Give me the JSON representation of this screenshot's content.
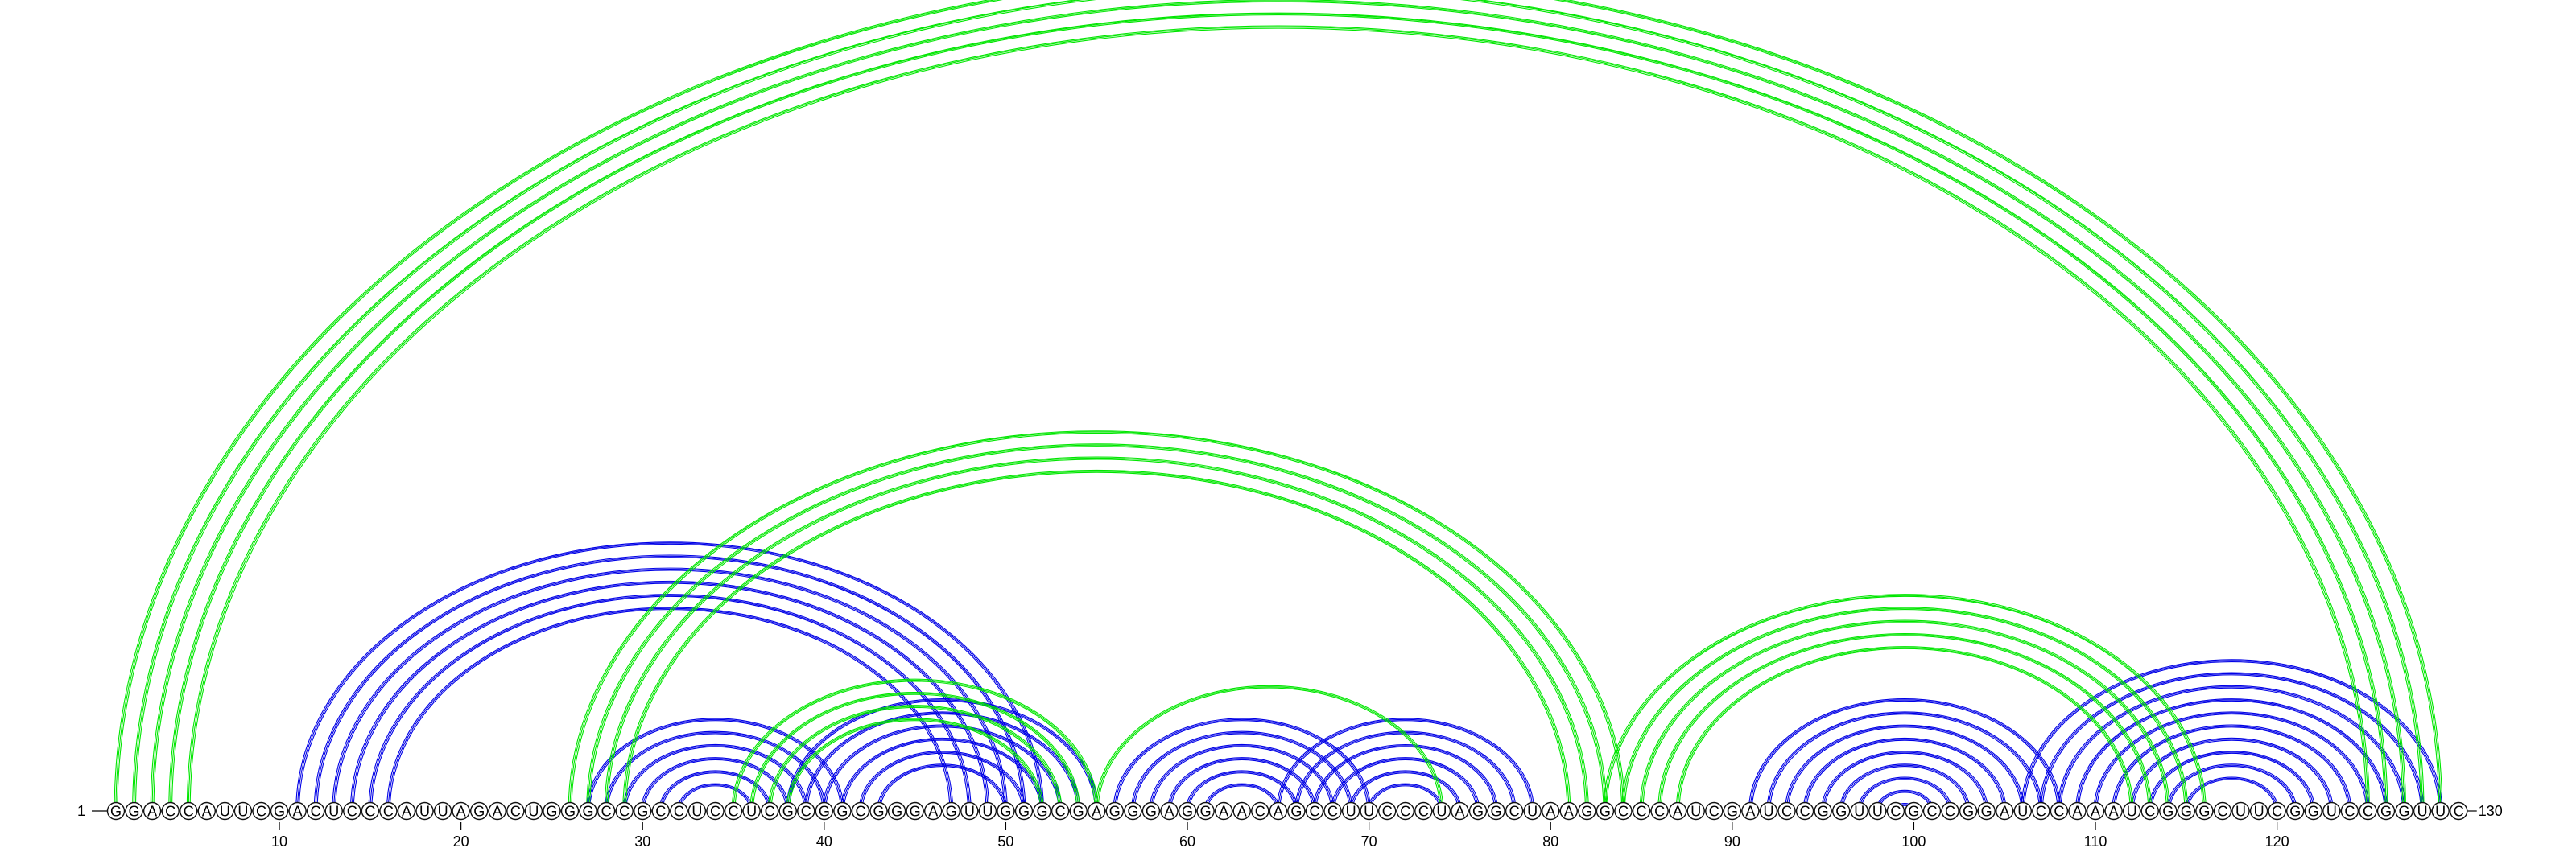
{
  "sequence": "GGACCAUUCGACUCCCAUUAGACUGGGCCGCCUCCUCGCGGCGGGAGUUGGGCGAGGGAGGAACAGCCUUCCCUAGGCUAAGGCCCAUCGAUCCGGUUCGCCGGAUCCAAAUCGGGCUUCGGUCCGGUUC",
  "start_label": "1",
  "end_label": "130",
  "tick_labels": [
    "10",
    "20",
    "30",
    "40",
    "50",
    "60",
    "70",
    "80",
    "90",
    "100",
    "110",
    "120"
  ],
  "colors": {
    "structure_a": "#0000e6",
    "structure_b": "#00e600",
    "backbone": "#000000"
  },
  "arc_sets": [
    {
      "color": "#0000e6",
      "pairs": [
        [
          11,
          52
        ],
        [
          12,
          51
        ],
        [
          13,
          50
        ],
        [
          14,
          49
        ],
        [
          15,
          48
        ],
        [
          16,
          47
        ],
        [
          27,
          41
        ],
        [
          28,
          40
        ],
        [
          29,
          39
        ],
        [
          30,
          38
        ],
        [
          31,
          37
        ],
        [
          32,
          36
        ],
        [
          38,
          55
        ],
        [
          39,
          54
        ],
        [
          40,
          53
        ],
        [
          41,
          52
        ],
        [
          42,
          51
        ],
        [
          43,
          50
        ],
        [
          56,
          70
        ],
        [
          57,
          69
        ],
        [
          58,
          68
        ],
        [
          59,
          67
        ],
        [
          60,
          66
        ],
        [
          61,
          65
        ],
        [
          65,
          79
        ],
        [
          66,
          78
        ],
        [
          67,
          77
        ],
        [
          68,
          76
        ],
        [
          69,
          75
        ],
        [
          70,
          74
        ],
        [
          91,
          108
        ],
        [
          92,
          107
        ],
        [
          93,
          106
        ],
        [
          94,
          105
        ],
        [
          95,
          104
        ],
        [
          96,
          103
        ],
        [
          97,
          102
        ],
        [
          98,
          101
        ],
        [
          99,
          100
        ],
        [
          106,
          129
        ],
        [
          107,
          128
        ],
        [
          108,
          127
        ],
        [
          109,
          126
        ],
        [
          110,
          125
        ],
        [
          111,
          124
        ],
        [
          112,
          123
        ],
        [
          113,
          122
        ],
        [
          114,
          121
        ],
        [
          115,
          120
        ]
      ]
    },
    {
      "color": "#00e600",
      "pairs": [
        [
          1,
          129
        ],
        [
          2,
          128
        ],
        [
          3,
          127
        ],
        [
          4,
          126
        ],
        [
          5,
          125
        ],
        [
          26,
          84
        ],
        [
          27,
          83
        ],
        [
          28,
          82
        ],
        [
          29,
          81
        ],
        [
          35,
          55
        ],
        [
          36,
          54
        ],
        [
          37,
          53
        ],
        [
          38,
          52
        ],
        [
          55,
          74
        ],
        [
          83,
          116
        ],
        [
          84,
          115
        ],
        [
          85,
          114
        ],
        [
          86,
          113
        ],
        [
          87,
          112
        ]
      ]
    }
  ]
}
